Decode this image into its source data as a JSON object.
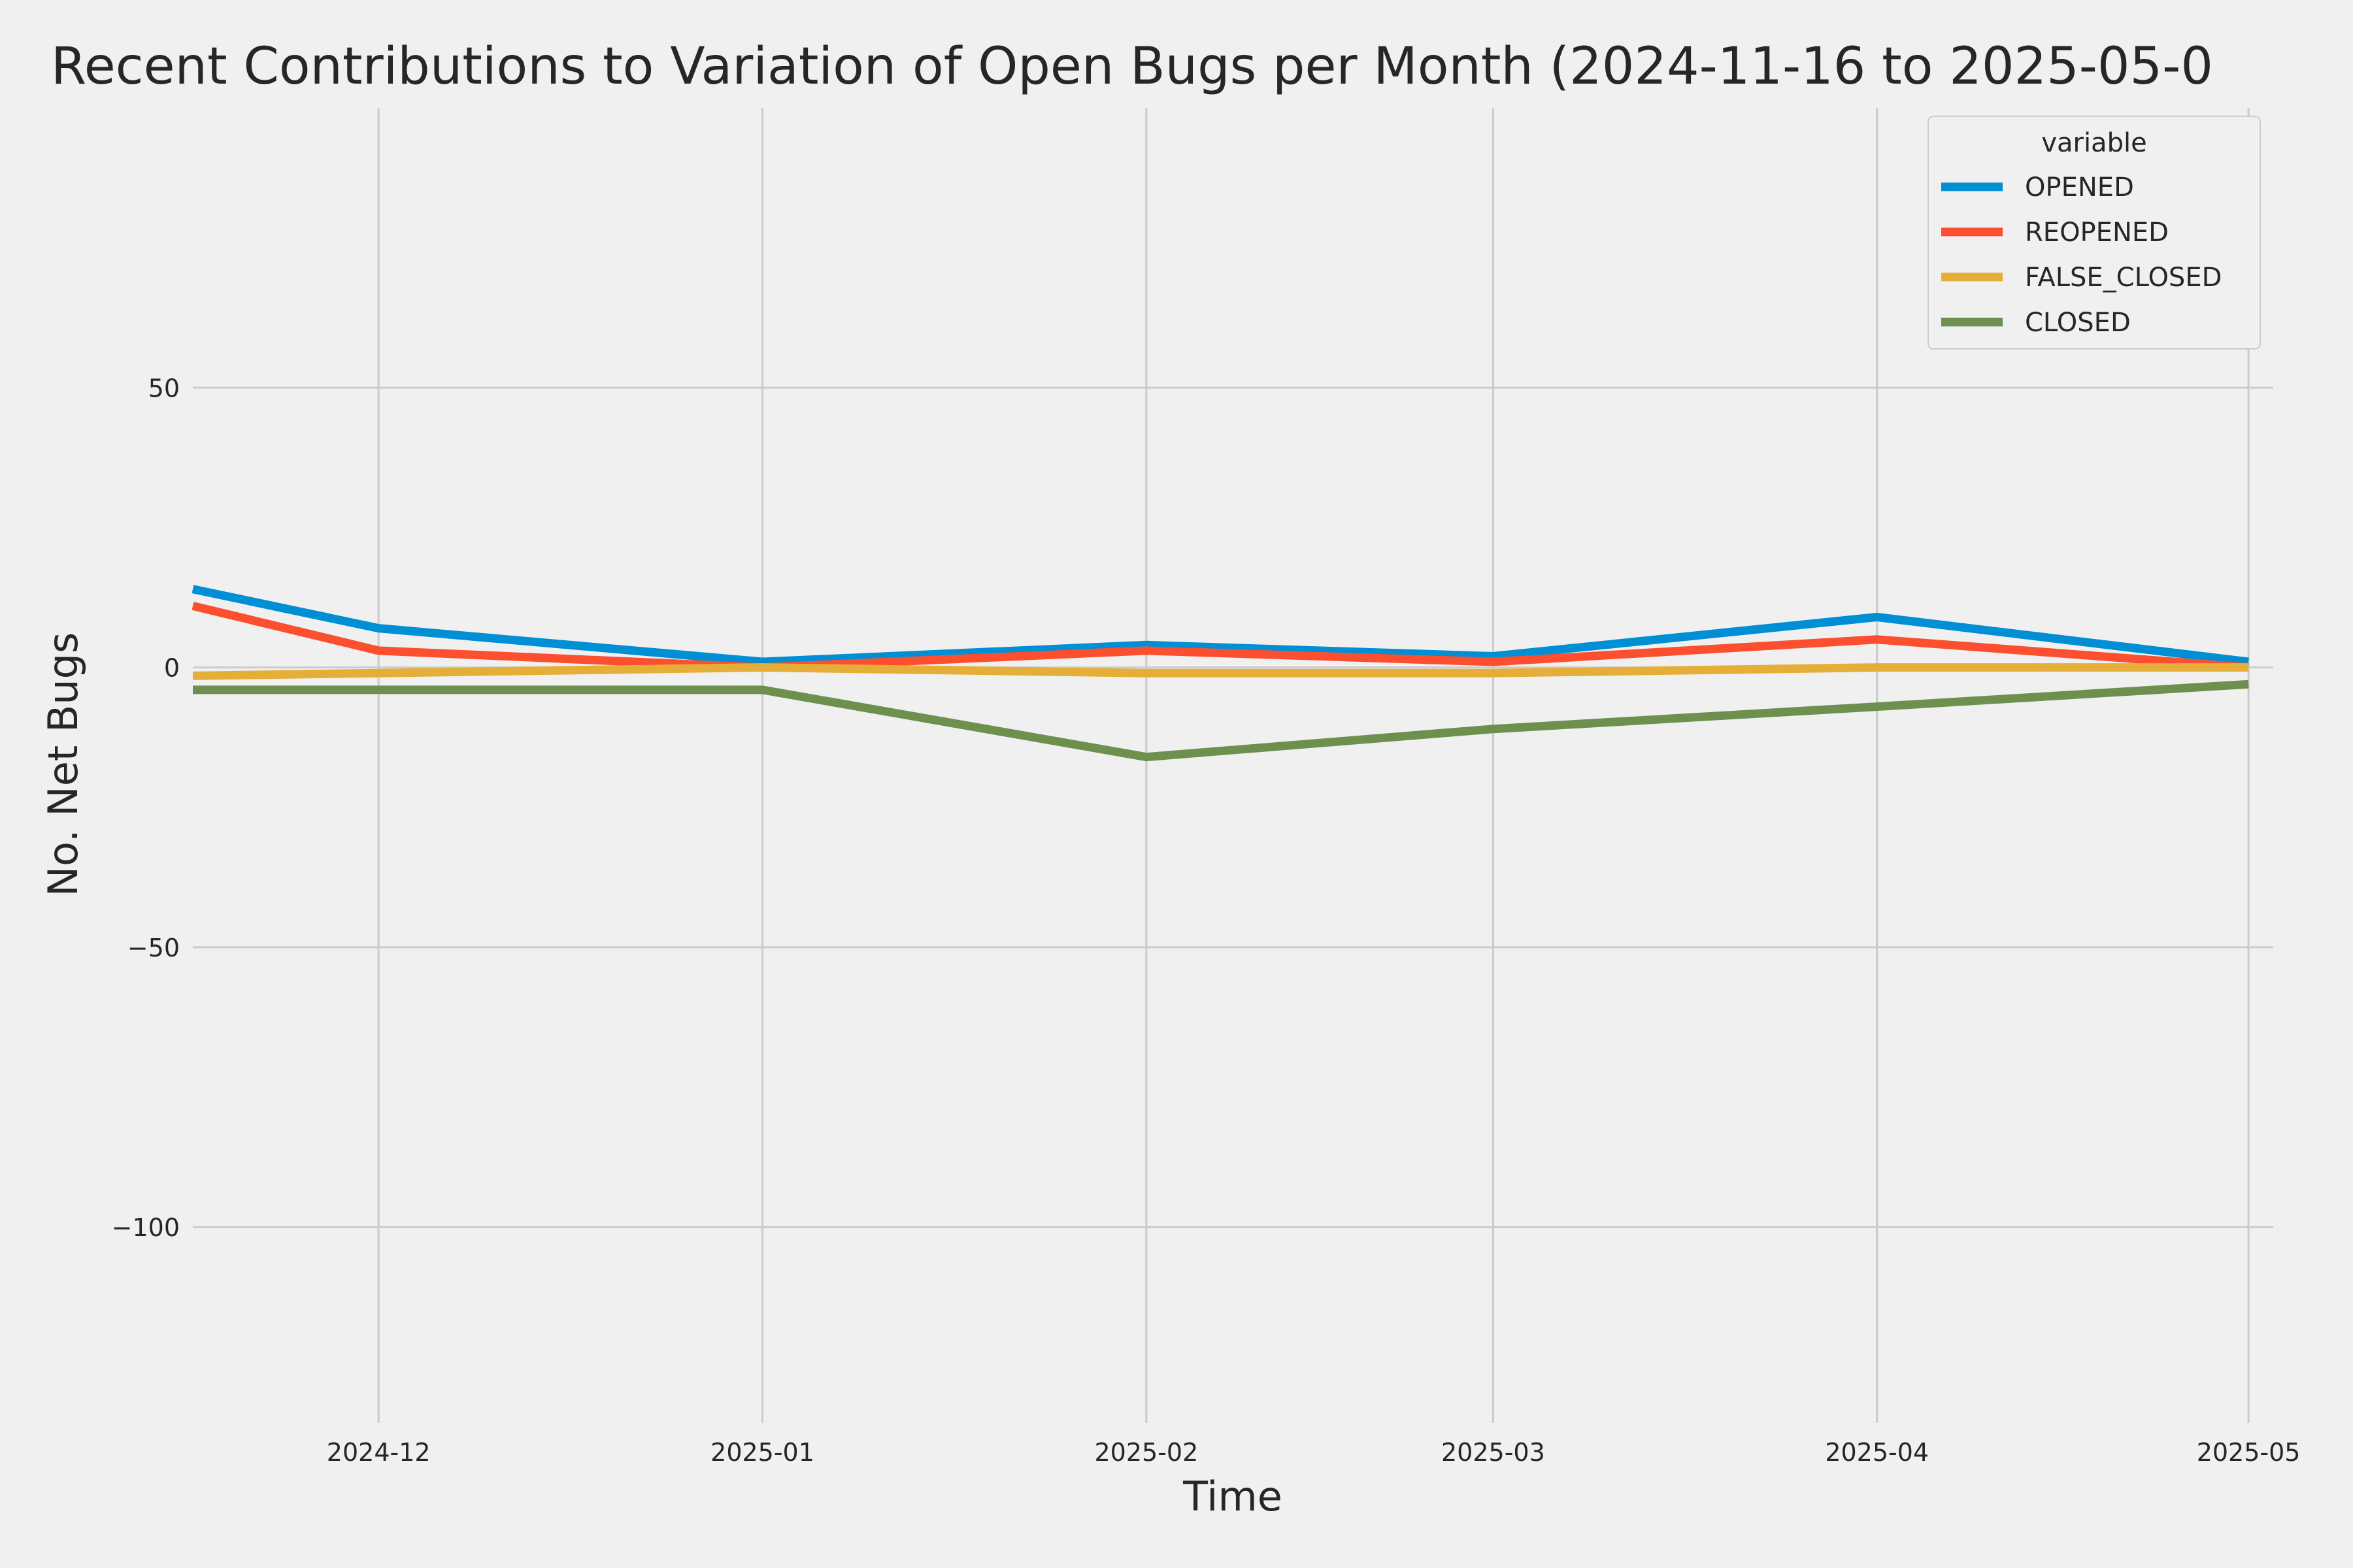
{
  "chart_data": {
    "type": "line",
    "title": "Recent Contributions to Variation of Open Bugs per Month (2024-11-16 to 2025-05-0",
    "xlabel": "Time",
    "ylabel": "No. Net Bugs",
    "x": [
      "2024-11-16",
      "2024-12-01",
      "2025-01-01",
      "2025-02-01",
      "2025-03-01",
      "2025-04-01",
      "2025-05-01"
    ],
    "x_ticks": [
      "2024-12",
      "2025-01",
      "2025-02",
      "2025-03",
      "2025-04",
      "2025-05"
    ],
    "x_range": [
      "2024-11-16",
      "2025-05-03"
    ],
    "y_ticks": [
      50,
      0,
      -50,
      -100
    ],
    "y_tick_labels": [
      "50",
      "0",
      "−50",
      "−100"
    ],
    "ylim": [
      -135,
      100
    ],
    "grid": true,
    "legend_title": "variable",
    "legend_position": "top-right",
    "series": [
      {
        "name": "OPENED",
        "color": "#008fd5",
        "values": [
          14,
          7,
          1,
          4,
          2,
          9,
          1
        ]
      },
      {
        "name": "REOPENED",
        "color": "#fc4f30",
        "values": [
          11,
          3,
          0,
          3,
          1,
          5,
          0
        ]
      },
      {
        "name": "FALSE_CLOSED",
        "color": "#e5ae38",
        "values": [
          -1.5,
          -1,
          0,
          -1,
          -1,
          0,
          0
        ]
      },
      {
        "name": "CLOSED",
        "color": "#6d904f",
        "values": [
          -4,
          -4,
          -4,
          -16,
          -11,
          -7,
          -3
        ]
      }
    ]
  }
}
